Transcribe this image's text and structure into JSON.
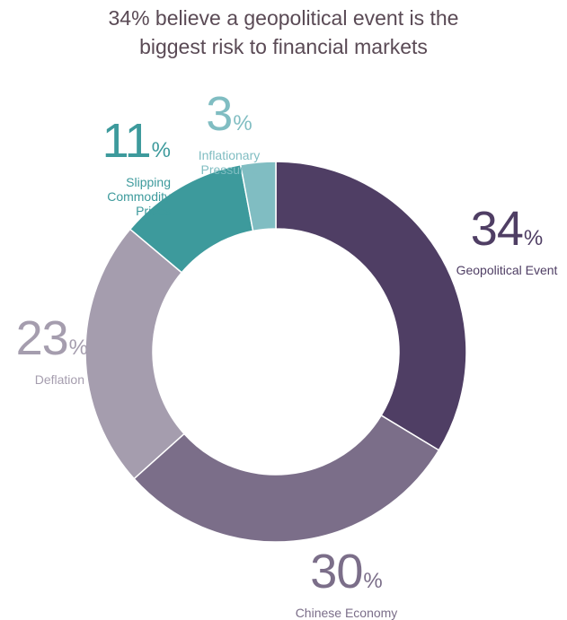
{
  "title_lines": [
    "34% believe a geopolitical event is the",
    "biggest risk to financial markets"
  ],
  "chart_data": {
    "type": "pie",
    "categories": [
      "Geopolitical Event",
      "Chinese Economy",
      "Deflation",
      "Slipping Commodity Prices",
      "Inflationary Pressures"
    ],
    "values": [
      34,
      30,
      23,
      11,
      3
    ],
    "value_labels": [
      "34",
      "30",
      "23",
      "11",
      "3"
    ],
    "unit": "%",
    "colors": [
      "#4f3e64",
      "#7b6e89",
      "#a59dae",
      "#3d9a9c",
      "#80bdc2"
    ],
    "label_colors": [
      "#4f3e64",
      "#7b6e89",
      "#a59dae",
      "#3d9a9c",
      "#80bdc2"
    ],
    "donut": true,
    "legend": "none"
  }
}
